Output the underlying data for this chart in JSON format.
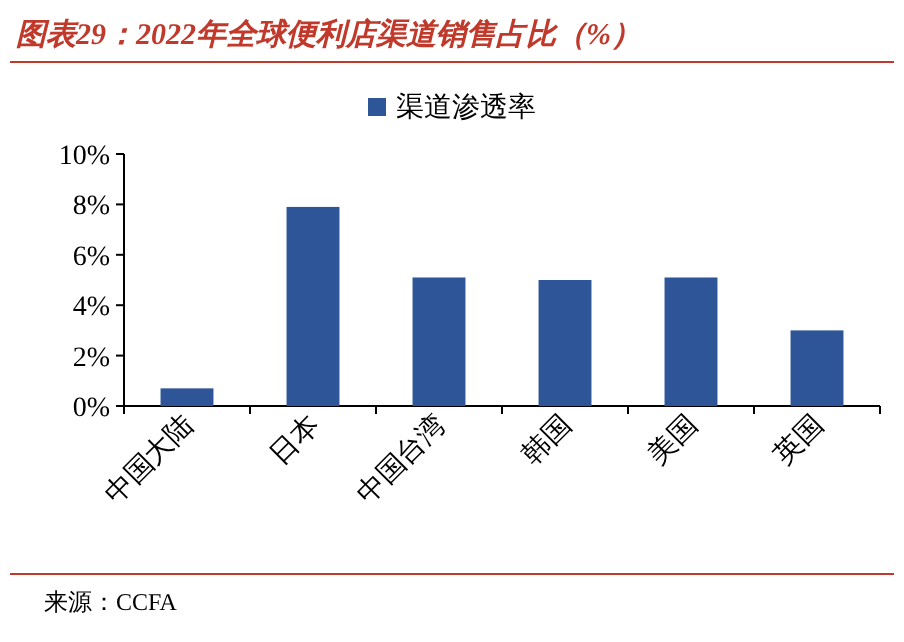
{
  "chart_data": {
    "type": "bar",
    "title": "图表29：2022年全球便利店渠道销售占比（%）",
    "categories": [
      "中国大陆",
      "日本",
      "中国台湾",
      "韩国",
      "美国",
      "英国"
    ],
    "series": [
      {
        "name": "渠道渗透率",
        "color": "#2e5597",
        "values": [
          0.7,
          7.9,
          5.1,
          5.0,
          5.1,
          3.0
        ]
      }
    ],
    "ylim": [
      0,
      10
    ],
    "yticks": [
      {
        "value": 0,
        "label": "0%"
      },
      {
        "value": 2,
        "label": "2%"
      },
      {
        "value": 4,
        "label": "4%"
      },
      {
        "value": 6,
        "label": "6%"
      },
      {
        "value": 8,
        "label": "8%"
      },
      {
        "value": 10,
        "label": "10%"
      }
    ],
    "legend": "top",
    "grid": false,
    "annotations": [
      "来源：CCFA"
    ]
  }
}
